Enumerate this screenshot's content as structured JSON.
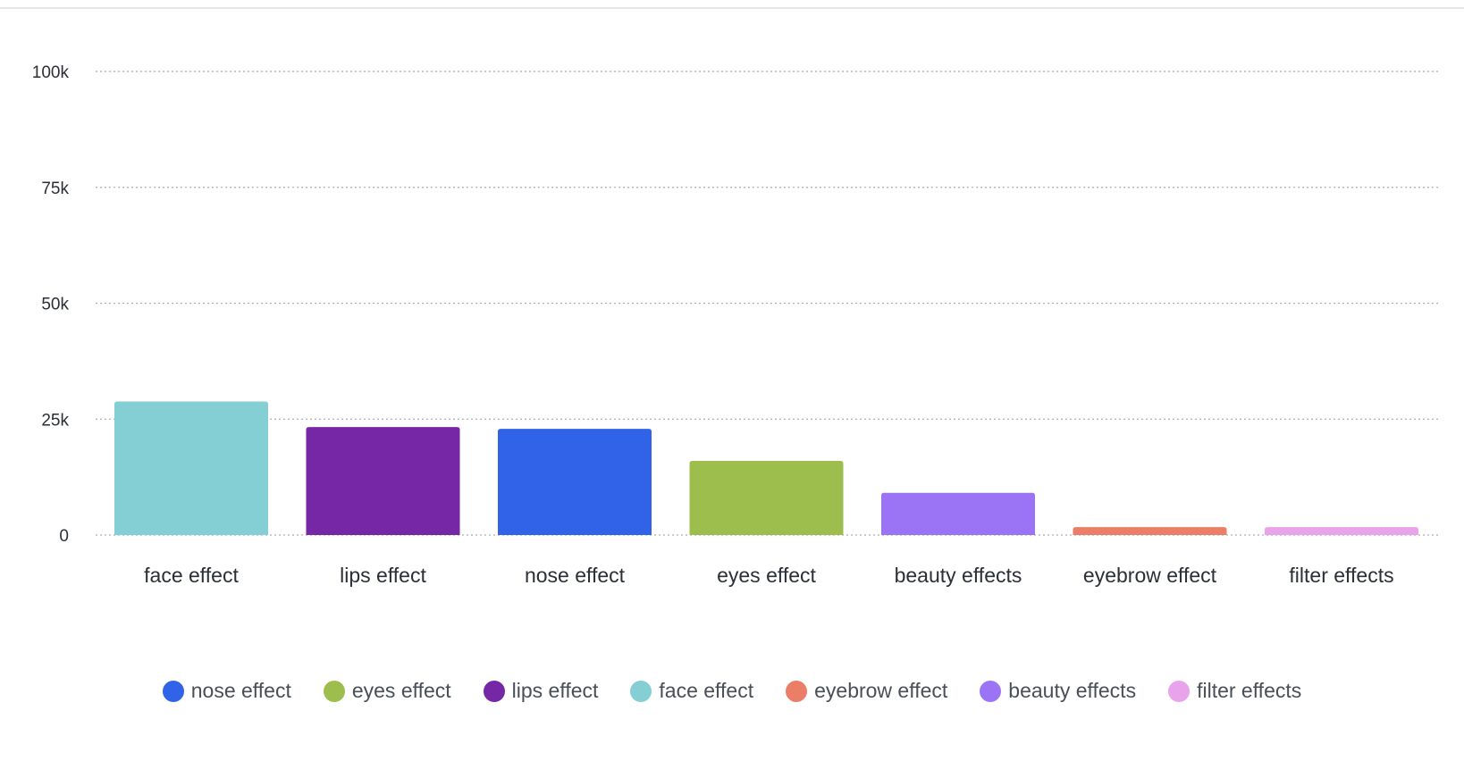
{
  "chart_data": {
    "type": "bar",
    "categories": [
      "face effect",
      "lips effect",
      "nose effect",
      "eyes effect",
      "beauty effects",
      "eyebrow effect",
      "filter effects"
    ],
    "values": [
      28800,
      23300,
      22900,
      16000,
      9100,
      1700,
      1700
    ],
    "colors": [
      "#84cfd4",
      "#7527a6",
      "#3163e8",
      "#9dbd4c",
      "#9a74f5",
      "#eb7e66",
      "#e8a3ea"
    ],
    "ylim": [
      0,
      100000
    ],
    "yticks": [
      0,
      25000,
      50000,
      75000,
      100000
    ],
    "ytick_labels": [
      "0",
      "25k",
      "50k",
      "75k",
      "100k"
    ],
    "grid": true,
    "legend_position": "bottom",
    "legend": [
      {
        "name": "nose effect",
        "color": "#3163e8"
      },
      {
        "name": "eyes effect",
        "color": "#9dbd4c"
      },
      {
        "name": "lips effect",
        "color": "#7527a6"
      },
      {
        "name": "face effect",
        "color": "#84cfd4"
      },
      {
        "name": "eyebrow effect",
        "color": "#eb7e66"
      },
      {
        "name": "beauty effects",
        "color": "#9a74f5"
      },
      {
        "name": "filter effects",
        "color": "#e8a3ea"
      }
    ]
  }
}
